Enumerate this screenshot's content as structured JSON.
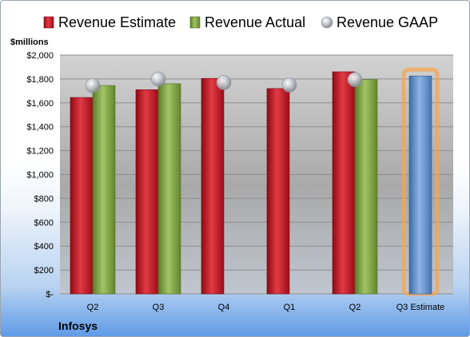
{
  "chart_data": {
    "type": "bar",
    "ylabel": "$millions",
    "footer_label": "Infosys",
    "categories": [
      "Q2",
      "Q3",
      "Q4",
      "Q1",
      "Q2",
      "Q3 Estimate"
    ],
    "y_ticks": [
      "$-",
      "$200",
      "$400",
      "$600",
      "$800",
      "$1,000",
      "$1,200",
      "$1,400",
      "$1,600",
      "$1,800",
      "$2,000"
    ],
    "ylim": [
      0,
      2000
    ],
    "grid": true,
    "legend_position": "top",
    "series": [
      {
        "name": "Revenue Estimate",
        "type": "bar",
        "color": "#c0111f",
        "values": [
          1645,
          1710,
          1805,
          1720,
          1860,
          null
        ]
      },
      {
        "name": "Revenue Actual",
        "type": "bar",
        "color": "#77a23b",
        "values": [
          1745,
          1760,
          null,
          null,
          1795,
          null
        ]
      },
      {
        "name": "Revenue GAAP",
        "type": "marker",
        "color": "#b8bcc2",
        "values": [
          1745,
          1800,
          1770,
          1750,
          1795,
          null
        ]
      },
      {
        "name": "Q3 Estimate",
        "type": "bar",
        "color": "#4f81c7",
        "highlight": "#f5a650",
        "values": [
          null,
          null,
          null,
          null,
          null,
          1825
        ]
      }
    ]
  }
}
